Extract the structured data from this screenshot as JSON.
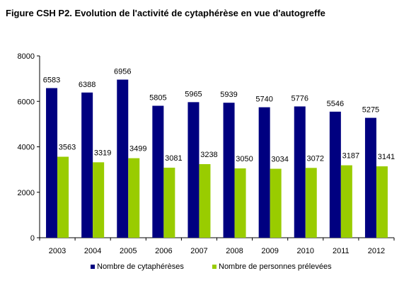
{
  "chart_data": {
    "type": "bar",
    "title": "Figure CSH P2. Evolution de l'activité de cytaphérèse en vue d'autogreffe",
    "xlabel": "",
    "ylabel": "",
    "categories": [
      "2003",
      "2004",
      "2005",
      "2006",
      "2007",
      "2008",
      "2009",
      "2010",
      "2011",
      "2012"
    ],
    "series": [
      {
        "name": "Nombre de cytaphérèses",
        "color": "#000080",
        "values": [
          6583,
          6388,
          6956,
          5805,
          5965,
          5939,
          5740,
          5776,
          5546,
          5275
        ]
      },
      {
        "name": "Nombre de personnes prélevées",
        "color": "#99CC00",
        "values": [
          3563,
          3319,
          3499,
          3081,
          3238,
          3050,
          3034,
          3072,
          3187,
          3141
        ]
      }
    ],
    "ylim": [
      0,
      8000
    ],
    "yticks": [
      0,
      2000,
      4000,
      6000,
      8000
    ],
    "grid": false,
    "legend_position": "bottom",
    "data_labels": true
  }
}
